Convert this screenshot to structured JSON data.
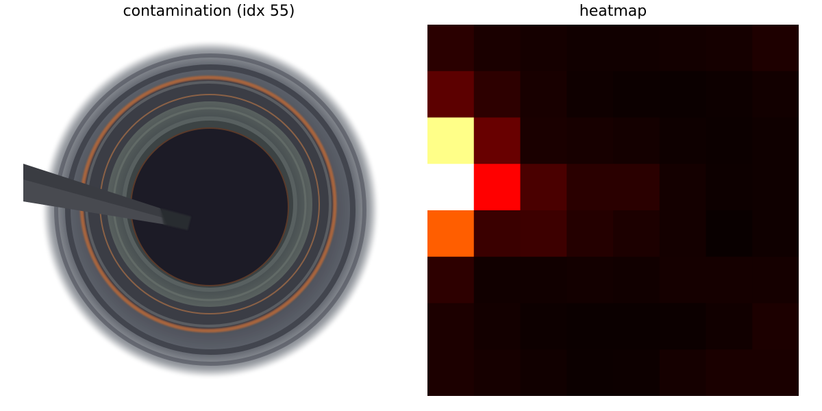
{
  "panels": {
    "left": {
      "title": "contamination (idx 55)"
    },
    "right": {
      "title": "heatmap"
    }
  },
  "heatmap": {
    "rows": 8,
    "cols": 8,
    "colormap": "hot",
    "colors": [
      [
        "#2a0000",
        "#1a0000",
        "#150000",
        "#110000",
        "#110000",
        "#130000",
        "#150000",
        "#1e0000"
      ],
      [
        "#5c0000",
        "#2d0000",
        "#180000",
        "#0f0000",
        "#0c0000",
        "#0b0000",
        "#0d0000",
        "#120000"
      ],
      [
        "#ffff88",
        "#680000",
        "#1a0000",
        "#170000",
        "#140000",
        "#0e0000",
        "#0c0000",
        "#0f0000"
      ],
      [
        "#ffffff",
        "#ff0000",
        "#4a0000",
        "#2a0000",
        "#2a0000",
        "#140000",
        "#0d0000",
        "#0f0000"
      ],
      [
        "#ff5e00",
        "#3a0000",
        "#3d0000",
        "#240000",
        "#1c0000",
        "#140000",
        "#090000",
        "#0f0000"
      ],
      [
        "#2d0000",
        "#110000",
        "#110000",
        "#130000",
        "#110000",
        "#150000",
        "#150000",
        "#150000"
      ],
      [
        "#1c0000",
        "#130000",
        "#0d0000",
        "#0b0000",
        "#0b0000",
        "#0c0000",
        "#110000",
        "#1c0000"
      ],
      [
        "#1c0000",
        "#160000",
        "#110000",
        "#0c0000",
        "#0d0000",
        "#150000",
        "#1a0000",
        "#1a0000"
      ]
    ]
  },
  "photo": {
    "subject": "bottle neck viewed from above with straw",
    "colors": {
      "background": "#ffffff",
      "outer_ring": "#4a4d56",
      "rim_copper": "#b06a3e",
      "inner_glass": "#2f3538",
      "opening": "#1c1b26",
      "straw": "#3a3c42"
    }
  }
}
